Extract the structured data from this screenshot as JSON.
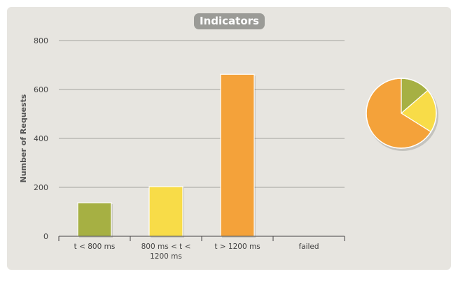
{
  "chart_data": {
    "type": "bar",
    "title": "Indicators",
    "xlabel": "",
    "ylabel": "Number of Requests",
    "ylim": [
      0,
      800
    ],
    "yticks": [
      0,
      200,
      400,
      600,
      800
    ],
    "grid": true,
    "categories": [
      [
        "t < 800 ms"
      ],
      [
        "800 ms < t <",
        "1200 ms"
      ],
      [
        "t > 1200 ms"
      ],
      [
        "failed"
      ]
    ],
    "values": [
      137,
      203,
      662,
      0
    ],
    "colors": [
      "#a6b043",
      "#f8dc48",
      "#f4a23a",
      "#e05050"
    ],
    "pie": {
      "values": [
        137,
        203,
        662,
        0
      ],
      "colors": [
        "#a6b043",
        "#f8dc48",
        "#f4a23a",
        "#e05050"
      ]
    }
  }
}
